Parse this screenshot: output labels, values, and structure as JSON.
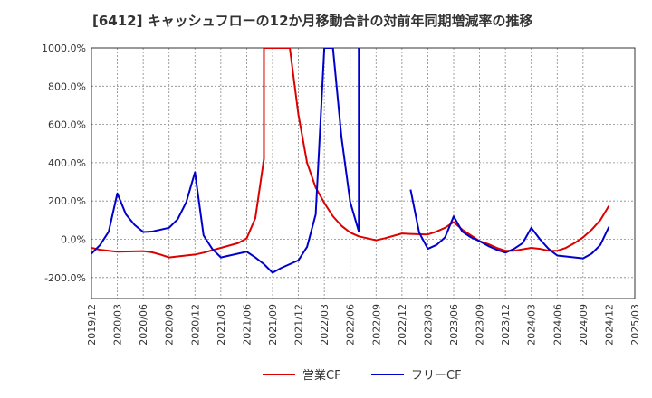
{
  "chart_data": {
    "type": "line",
    "title": "[6412]  キャッシュフローの12か月移動合計の対前年同期増減率の推移",
    "xlabel": "",
    "ylabel": "",
    "ylim": [
      -300,
      1000
    ],
    "ylim_note": "plot area extends slightly below -200 to about -310",
    "yticks": [
      1000,
      800,
      600,
      400,
      200,
      0,
      -200
    ],
    "ytick_labels": [
      "1000.0%",
      "800.0%",
      "600.0%",
      "400.0%",
      "200.0%",
      "0.0%",
      "-200.0%"
    ],
    "xticks": [
      "2019/12",
      "2020/03",
      "2020/06",
      "2020/09",
      "2020/12",
      "2021/03",
      "2021/06",
      "2021/09",
      "2021/12",
      "2022/03",
      "2022/06",
      "2022/09",
      "2022/12",
      "2023/03",
      "2023/06",
      "2023/09",
      "2023/12",
      "2024/03",
      "2024/06",
      "2024/09",
      "2024/12",
      "2025/03"
    ],
    "series": [
      {
        "name": "営業CF",
        "color": "#dd0000",
        "points": [
          [
            "2019/12",
            -45
          ],
          [
            "2020/01",
            -55
          ],
          [
            "2020/03",
            -65
          ],
          [
            "2020/06",
            -62
          ],
          [
            "2020/07",
            -68
          ],
          [
            "2020/08",
            -80
          ],
          [
            "2020/09",
            -95
          ],
          [
            "2020/10",
            -90
          ],
          [
            "2020/12",
            -80
          ],
          [
            "2021/01",
            -70
          ],
          [
            "2021/03",
            -45
          ],
          [
            "2021/05",
            -20
          ],
          [
            "2021/06",
            5
          ],
          [
            "2021/07",
            110
          ],
          [
            "2021/08",
            420
          ],
          [
            "2021/08",
            1000
          ],
          [
            "2021/11",
            1000
          ],
          [
            "2021/12",
            650
          ],
          [
            "2022/01",
            400
          ],
          [
            "2022/02",
            270
          ],
          [
            "2022/03",
            190
          ],
          [
            "2022/04",
            120
          ],
          [
            "2022/05",
            70
          ],
          [
            "2022/06",
            35
          ],
          [
            "2022/07",
            15
          ],
          [
            "2022/08",
            5
          ],
          [
            "2022/09",
            -5
          ],
          [
            "2022/10",
            5
          ],
          [
            "2022/12",
            30
          ],
          [
            "2023/01",
            28
          ],
          [
            "2023/03",
            25
          ],
          [
            "2023/04",
            40
          ],
          [
            "2023/05",
            60
          ],
          [
            "2023/06",
            90
          ],
          [
            "2023/07",
            50
          ],
          [
            "2023/08",
            20
          ],
          [
            "2023/09",
            -10
          ],
          [
            "2023/10",
            -25
          ],
          [
            "2023/11",
            -45
          ],
          [
            "2023/12",
            -60
          ],
          [
            "2024/01",
            -60
          ],
          [
            "2024/03",
            -45
          ],
          [
            "2024/04",
            -50
          ],
          [
            "2024/05",
            -60
          ],
          [
            "2024/06",
            -60
          ],
          [
            "2024/07",
            -45
          ],
          [
            "2024/08",
            -20
          ],
          [
            "2024/09",
            10
          ],
          [
            "2024/10",
            50
          ],
          [
            "2024/11",
            100
          ],
          [
            "2024/12",
            175
          ]
        ]
      },
      {
        "name": "フリーCF",
        "color": "#0000cc",
        "segments": [
          [
            [
              "2019/12",
              -75
            ],
            [
              "2020/01",
              -30
            ],
            [
              "2020/02",
              40
            ],
            [
              "2020/03",
              240
            ],
            [
              "2020/04",
              130
            ],
            [
              "2020/05",
              75
            ],
            [
              "2020/06",
              38
            ],
            [
              "2020/07",
              40
            ],
            [
              "2020/09",
              60
            ],
            [
              "2020/10",
              105
            ],
            [
              "2020/11",
              195
            ],
            [
              "2020/12",
              350
            ],
            [
              "2021/01",
              20
            ],
            [
              "2021/02",
              -50
            ],
            [
              "2021/03",
              -95
            ],
            [
              "2021/04",
              -85
            ],
            [
              "2021/06",
              -65
            ],
            [
              "2021/07",
              -95
            ],
            [
              "2021/08",
              -130
            ],
            [
              "2021/09",
              -175
            ],
            [
              "2021/10",
              -150
            ],
            [
              "2021/12",
              -110
            ],
            [
              "2022/01",
              -40
            ],
            [
              "2022/02",
              130
            ],
            [
              "2022/03",
              1000
            ],
            [
              "2022/04",
              1000
            ],
            [
              "2022/05",
              530
            ],
            [
              "2022/06",
              195
            ],
            [
              "2022/07",
              40
            ],
            [
              "2022/07",
              1000
            ]
          ],
          [
            [
              "2023/01",
              260
            ],
            [
              "2023/02",
              35
            ],
            [
              "2023/03",
              -50
            ],
            [
              "2023/04",
              -30
            ],
            [
              "2023/05",
              10
            ],
            [
              "2023/06",
              120
            ],
            [
              "2023/07",
              40
            ],
            [
              "2023/08",
              10
            ],
            [
              "2023/09",
              -10
            ],
            [
              "2023/10",
              -35
            ],
            [
              "2023/11",
              -55
            ],
            [
              "2023/12",
              -70
            ],
            [
              "2024/01",
              -50
            ],
            [
              "2024/02",
              -20
            ],
            [
              "2024/03",
              60
            ],
            [
              "2024/04",
              0
            ],
            [
              "2024/05",
              -50
            ],
            [
              "2024/06",
              -85
            ],
            [
              "2024/07",
              -90
            ],
            [
              "2024/09",
              -100
            ],
            [
              "2024/10",
              -75
            ],
            [
              "2024/11",
              -30
            ],
            [
              "2024/12",
              65
            ]
          ]
        ]
      }
    ],
    "legend": [
      "営業CF",
      "フリーCF"
    ],
    "legend_position": "bottom-center",
    "grid": true
  }
}
